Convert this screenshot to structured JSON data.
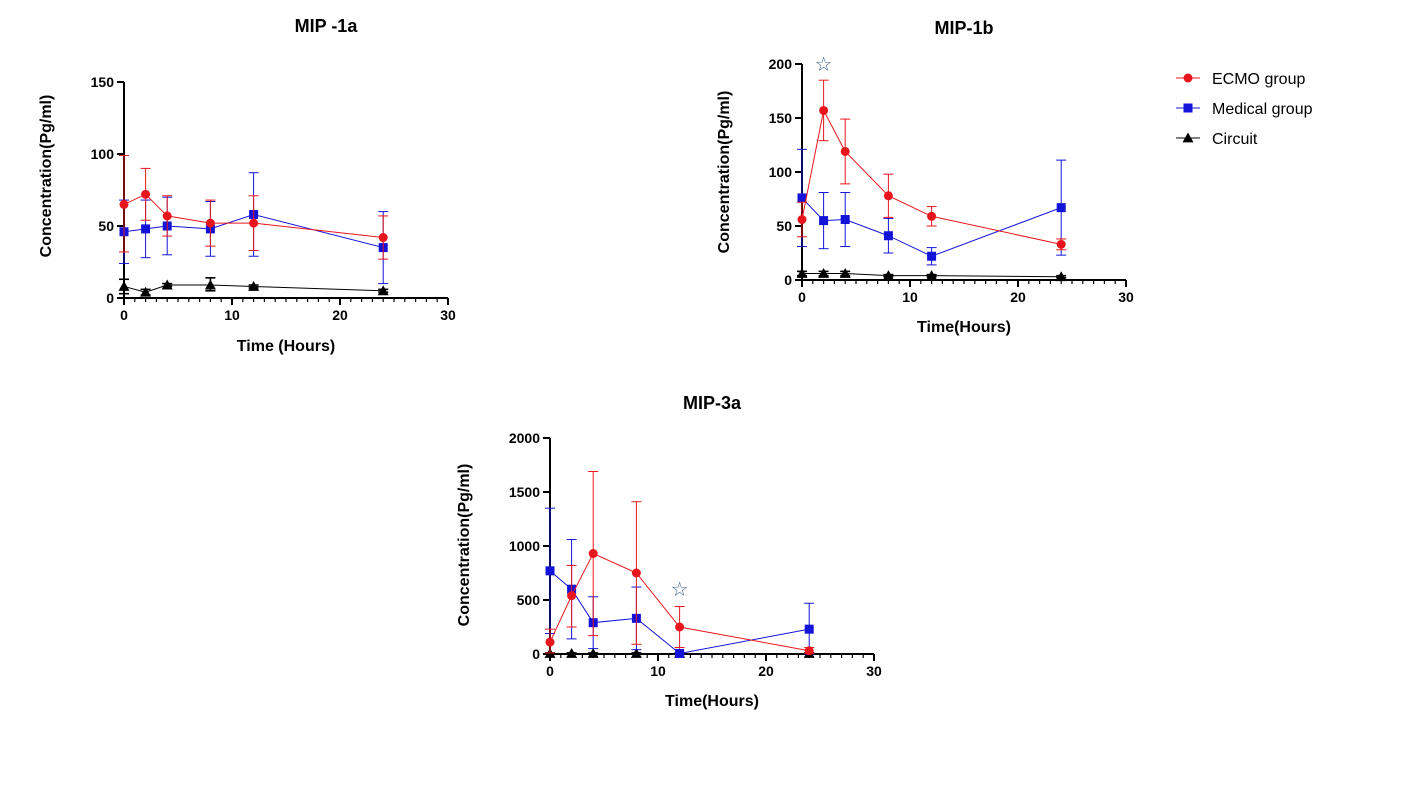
{
  "colors": {
    "ecmo": "#e8161c",
    "medical": "#1414d8",
    "circuit": "#000000",
    "star": "#4a6a8a"
  },
  "legend": {
    "placement": "right",
    "items": [
      {
        "key": "ecmo",
        "label": "ECMO group",
        "marker": "circle"
      },
      {
        "key": "medical",
        "label": "Medical group",
        "marker": "square"
      },
      {
        "key": "circuit",
        "label": "Circuit",
        "marker": "triangle"
      }
    ]
  },
  "chart_data": [
    {
      "id": "mip1a",
      "type": "line",
      "title": "MIP -1a",
      "xlabel": "Time (Hours)",
      "ylabel": "Concentration(Pg/ml)",
      "xlim": [
        0,
        30
      ],
      "ylim": [
        0,
        150
      ],
      "xticks": [
        0,
        10,
        20,
        30
      ],
      "yticks": [
        0,
        50,
        100,
        150
      ],
      "x": [
        0,
        2,
        4,
        8,
        12,
        24
      ],
      "series": [
        {
          "key": "ecmo",
          "name": "ECMO group",
          "values": [
            65,
            72,
            57,
            52,
            52,
            42
          ],
          "err_high": [
            99,
            90,
            71,
            68,
            71,
            57
          ],
          "err_low": [
            32,
            54,
            43,
            36,
            33,
            27
          ]
        },
        {
          "key": "medical",
          "name": "Medical group",
          "values": [
            46,
            48,
            50,
            48,
            58,
            35
          ],
          "err_high": [
            68,
            68,
            70,
            67,
            87,
            60
          ],
          "err_low": [
            24,
            28,
            30,
            29,
            29,
            10
          ]
        },
        {
          "key": "circuit",
          "name": "Circuit",
          "values": [
            8,
            4,
            9,
            9,
            8,
            5
          ],
          "err_high": [
            13,
            6,
            10,
            14,
            9,
            6
          ],
          "err_low": [
            3,
            2,
            8,
            5,
            7,
            4
          ]
        }
      ],
      "stars": []
    },
    {
      "id": "mip1b",
      "type": "line",
      "title": "MIP-1b",
      "xlabel": "Time(Hours)",
      "ylabel": "Concentration(Pg/ml)",
      "xlim": [
        0,
        30
      ],
      "ylim": [
        0,
        200
      ],
      "xticks": [
        0,
        10,
        20,
        30
      ],
      "yticks": [
        0,
        50,
        100,
        150,
        200
      ],
      "x": [
        0,
        2,
        4,
        8,
        12,
        24
      ],
      "series": [
        {
          "key": "ecmo",
          "name": "ECMO group",
          "values": [
            56,
            157,
            119,
            78,
            59,
            33
          ],
          "err_high": [
            72,
            185,
            149,
            98,
            68,
            38
          ],
          "err_low": [
            40,
            129,
            89,
            58,
            50,
            28
          ]
        },
        {
          "key": "medical",
          "name": "Medical group",
          "values": [
            76,
            55,
            56,
            41,
            22,
            67
          ],
          "err_high": [
            121,
            81,
            81,
            57,
            30,
            111
          ],
          "err_low": [
            31,
            29,
            31,
            25,
            14,
            23
          ]
        },
        {
          "key": "circuit",
          "name": "Circuit",
          "values": [
            6,
            6,
            6,
            4,
            4,
            3
          ],
          "err_high": [
            8,
            8,
            8,
            5,
            5,
            4
          ],
          "err_low": [
            4,
            4,
            4,
            3,
            3,
            2
          ]
        }
      ],
      "stars": [
        {
          "x": 2,
          "y": 200,
          "glyph": "☆"
        }
      ]
    },
    {
      "id": "mip3a",
      "type": "line",
      "title": "MIP-3a",
      "xlabel": "Time(Hours)",
      "ylabel": "Concentration(Pg/ml)",
      "xlim": [
        0,
        30
      ],
      "ylim": [
        0,
        2000
      ],
      "xticks": [
        0,
        10,
        20,
        30
      ],
      "yticks": [
        0,
        500,
        1000,
        1500,
        2000
      ],
      "x": [
        0,
        2,
        4,
        8,
        12,
        24
      ],
      "series": [
        {
          "key": "ecmo",
          "name": "ECMO group",
          "values": [
            110,
            540,
            930,
            750,
            250,
            30
          ],
          "err_high": [
            230,
            820,
            1690,
            1410,
            440,
            60
          ],
          "err_low": [
            10,
            250,
            170,
            90,
            60,
            5
          ]
        },
        {
          "key": "medical",
          "name": "Medical group",
          "values": [
            770,
            600,
            290,
            330,
            5,
            230
          ],
          "err_high": [
            1350,
            1060,
            530,
            620,
            15,
            470
          ],
          "err_low": [
            190,
            140,
            50,
            40,
            0,
            0
          ]
        },
        {
          "key": "circuit",
          "name": "Circuit",
          "values": [
            5,
            5,
            5,
            5,
            5,
            5
          ],
          "err_high": [
            10,
            10,
            10,
            10,
            10,
            10
          ],
          "err_low": [
            0,
            0,
            0,
            0,
            0,
            0
          ]
        }
      ],
      "stars": [
        {
          "x": 12,
          "y": 600,
          "glyph": "☆"
        }
      ]
    }
  ]
}
